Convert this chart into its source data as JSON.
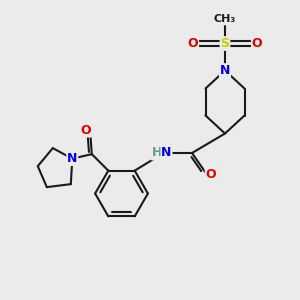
{
  "bg_color": "#ebebeb",
  "bond_color": "#1a1a1a",
  "bond_lw": 1.5,
  "atom_colors": {
    "N": "#0000ee",
    "O": "#dd0000",
    "S": "#cccc00",
    "H": "#669999"
  },
  "font_size": 9.0,
  "methyl_fontsize": 8.0
}
